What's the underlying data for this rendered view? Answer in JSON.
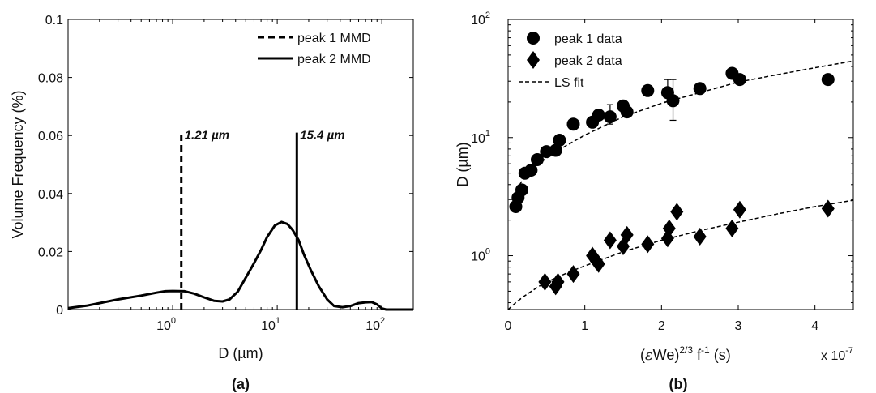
{
  "chart_data": [
    {
      "type": "line",
      "panel_label": "(a)",
      "xlabel": "D (µm)",
      "ylabel": "Volume Frequency (%)",
      "xscale": "log",
      "xlim": [
        0.1,
        200
      ],
      "ylim": [
        0,
        0.1
      ],
      "xtick_labels": [
        {
          "value": 1,
          "base": "10",
          "exp": "0"
        },
        {
          "value": 10,
          "base": "10",
          "exp": "1"
        },
        {
          "value": 100,
          "base": "10",
          "exp": "2"
        }
      ],
      "yticks": [
        "0",
        "0.02",
        "0.04",
        "0.06",
        "0.08",
        "0.1"
      ],
      "grid": false,
      "legend_position": "top-right",
      "legend": [
        {
          "label": "peak 1 MMD",
          "style": "dashed"
        },
        {
          "label": "peak 2 MMD",
          "style": "solid"
        }
      ],
      "series": [
        {
          "style": "solid",
          "x": [
            0.1,
            0.15,
            0.2,
            0.3,
            0.5,
            0.7,
            0.85,
            1.0,
            1.3,
            1.6,
            2.0,
            2.5,
            3.0,
            3.5,
            4.2,
            5.0,
            6.0,
            7.0,
            8.0,
            9.5,
            11.0,
            12.5,
            14.0,
            16.0,
            18.0,
            21.0,
            25.0,
            30.0,
            35.0,
            42.0,
            50.0,
            60.0,
            70.0,
            80.0,
            90.0,
            100.0,
            110.0,
            130.0,
            200.0
          ],
          "y": [
            0.0005,
            0.0013,
            0.0022,
            0.0035,
            0.0048,
            0.0058,
            0.0063,
            0.0064,
            0.0063,
            0.0055,
            0.0042,
            0.003,
            0.0028,
            0.0035,
            0.0062,
            0.011,
            0.016,
            0.0205,
            0.025,
            0.029,
            0.0302,
            0.0295,
            0.0275,
            0.024,
            0.019,
            0.0135,
            0.008,
            0.0035,
            0.0012,
            0.0008,
            0.0012,
            0.0022,
            0.0025,
            0.0026,
            0.0018,
            0.0004,
            0.0,
            0.0,
            0.0
          ]
        }
      ],
      "markers": [
        {
          "label": "peak 1 MMD",
          "x": 1.21,
          "y": 0.061,
          "text": "1.21 µm",
          "style": "dashed"
        },
        {
          "label": "peak 2 MMD",
          "x": 15.4,
          "y": 0.061,
          "text": "15.4 µm",
          "style": "solid"
        }
      ]
    },
    {
      "type": "scatter",
      "panel_label": "(b)",
      "xlabel_base": "(",
      "xlabel_eps": "ε",
      "xlabel_we": "We)",
      "xlabel_exp1": "2/3",
      "xlabel_f": " f",
      "xlabel_exp2": "-1",
      "xlabel_tail": " (s)",
      "ylabel": "D (µm)",
      "yscale": "log",
      "xlim": [
        0,
        4.5
      ],
      "ylim": [
        0.35,
        100
      ],
      "x_multiplier_base": "x 10",
      "x_multiplier_exp": "-7",
      "xticks": [
        "0",
        "1",
        "2",
        "3",
        "4"
      ],
      "ytick_labels": [
        {
          "value": 1,
          "base": "10",
          "exp": "0"
        },
        {
          "value": 10,
          "base": "10",
          "exp": "1"
        },
        {
          "value": 100,
          "base": "10",
          "exp": "2"
        }
      ],
      "grid": false,
      "legend_position": "top-left",
      "legend": [
        {
          "label": "peak 1 data",
          "marker": "circle"
        },
        {
          "label": "peak 2 data",
          "marker": "diamond"
        },
        {
          "label": "LS fit",
          "marker": "dashed-line"
        }
      ],
      "series": [
        {
          "name": "peak 1 data",
          "marker": "circle",
          "x": [
            0.1,
            0.13,
            0.18,
            0.22,
            0.3,
            0.38,
            0.5,
            0.62,
            0.67,
            0.85,
            1.1,
            1.18,
            1.33,
            1.5,
            1.55,
            1.82,
            2.08,
            2.15,
            2.5,
            2.92,
            3.02,
            4.17
          ],
          "y": [
            2.6,
            3.1,
            3.6,
            5.0,
            5.3,
            6.5,
            7.6,
            7.8,
            9.5,
            13.0,
            13.5,
            15.5,
            15.0,
            18.5,
            16.5,
            25.0,
            24.0,
            20.5,
            26.0,
            35.0,
            31.0,
            31.0
          ],
          "error_bars": [
            {
              "x": 1.33,
              "low": 13.0,
              "high": 19.0
            },
            {
              "x": 2.08,
              "low": 20.0,
              "high": 31.0
            },
            {
              "x": 2.15,
              "low": 14.0,
              "high": 31.0
            }
          ]
        },
        {
          "name": "peak 2 data",
          "marker": "diamond",
          "x": [
            0.48,
            0.62,
            0.65,
            0.85,
            1.1,
            1.15,
            1.18,
            1.33,
            1.5,
            1.55,
            1.82,
            2.08,
            2.1,
            2.2,
            2.5,
            2.92,
            3.02,
            4.17
          ],
          "y": [
            0.6,
            0.55,
            0.6,
            0.7,
            1.0,
            0.9,
            0.85,
            1.35,
            1.2,
            1.5,
            1.25,
            1.4,
            1.7,
            2.35,
            1.45,
            1.7,
            2.45,
            2.5
          ]
        },
        {
          "name": "LS fit",
          "style": "dashed",
          "x": [
            0.01,
            0.05,
            0.1,
            0.2,
            0.3,
            0.5,
            0.75,
            1.0,
            1.5,
            2.0,
            2.5,
            3.0,
            3.5,
            4.0,
            4.5
          ],
          "y": [
            3.0,
            3.0,
            3.5,
            4.5,
            5.3,
            6.7,
            8.5,
            10.5,
            15.0,
            19.5,
            24.0,
            29.5,
            34.0,
            39.0,
            44.5
          ]
        },
        {
          "name": "LS fit",
          "style": "dashed",
          "x": [
            0.0,
            0.1,
            0.2,
            0.4,
            0.6,
            0.8,
            1.0,
            1.5,
            2.0,
            2.5,
            3.0,
            3.5,
            4.0,
            4.5
          ],
          "y": [
            0.35,
            0.4,
            0.45,
            0.55,
            0.64,
            0.73,
            0.82,
            1.08,
            1.35,
            1.63,
            1.92,
            2.25,
            2.6,
            2.95
          ]
        }
      ]
    }
  ]
}
